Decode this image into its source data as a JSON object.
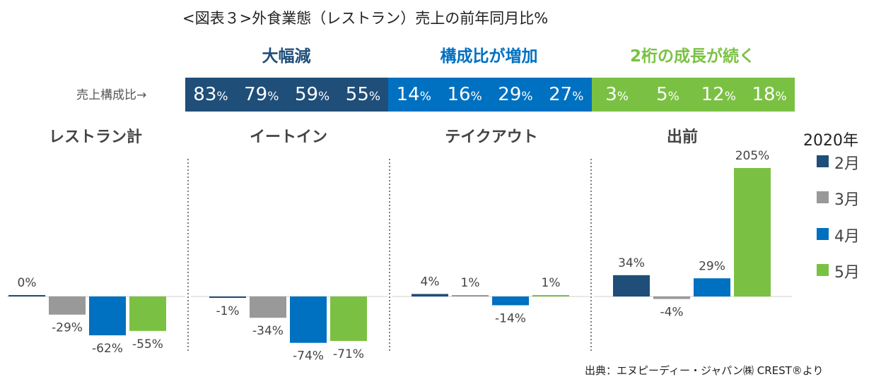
{
  "title": "<図表３>外食業態（レストラン）売上の前年同月比%",
  "band_headers": [
    {
      "label": "大幅減",
      "color": "#1f4e79"
    },
    {
      "label": "構成比が増加",
      "color": "#0070c0"
    },
    {
      "label": "2桁の成長が続く",
      "color": "#7ac143"
    }
  ],
  "share": {
    "label": "売上構成比→",
    "unit": "%",
    "groups": [
      {
        "color": "#1f4e79",
        "values": [
          "83",
          "79",
          "59",
          "55"
        ]
      },
      {
        "color": "#0070c0",
        "values": [
          "14",
          "16",
          "29",
          "27"
        ]
      },
      {
        "color": "#7ac143",
        "values": [
          "3",
          "5",
          "12",
          "18"
        ]
      }
    ]
  },
  "legend": {
    "title": "2020年",
    "items": [
      {
        "label": "2月",
        "color": "#1f4e79"
      },
      {
        "label": "3月",
        "color": "#999999"
      },
      {
        "label": "4月",
        "color": "#0070c0"
      },
      {
        "label": "5月",
        "color": "#7ac143"
      }
    ]
  },
  "source": "出典：エヌピーディー・ジャパン㈱ CREST®より",
  "chart_data": {
    "type": "bar",
    "unit": "%",
    "grid": false,
    "legend_position": "right",
    "categories": [
      "レストラン計",
      "イートイン",
      "テイクアウト",
      "出前"
    ],
    "series": [
      {
        "name": "2月",
        "values": [
          0,
          -1,
          4,
          34
        ],
        "labels": [
          "0%",
          "-1%",
          "4%",
          "34%"
        ]
      },
      {
        "name": "3月",
        "values": [
          -29,
          -34,
          1,
          -4
        ],
        "labels": [
          "-29%",
          "-34%",
          "1%",
          "-4%"
        ]
      },
      {
        "name": "4月",
        "values": [
          -62,
          -74,
          -14,
          29
        ],
        "labels": [
          "-62%",
          "-74%",
          "-14%",
          "29%"
        ]
      },
      {
        "name": "5月",
        "values": [
          -55,
          -71,
          1,
          205
        ],
        "labels": [
          "-55%",
          "-71%",
          "1%",
          "205%"
        ]
      }
    ],
    "ylim": [
      -80,
      205
    ]
  }
}
